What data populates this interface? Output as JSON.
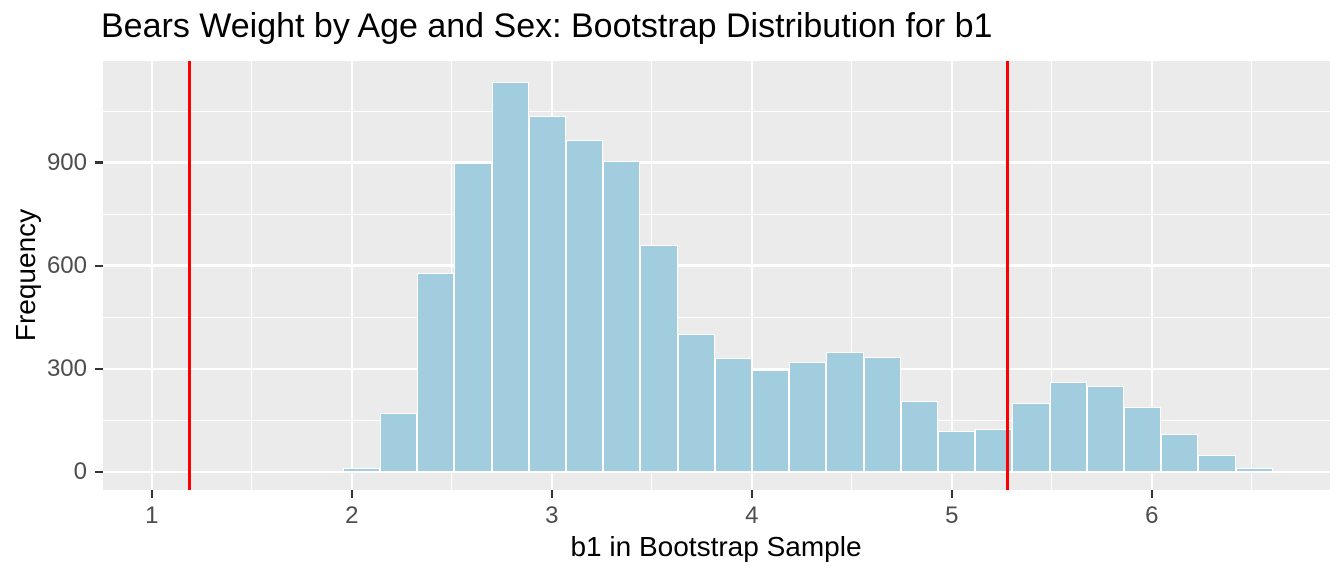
{
  "figure": {
    "background": "#ffffff"
  },
  "chart_data": {
    "type": "bar",
    "subtype": "histogram",
    "title": "Bears Weight by Age and Sex: Bootstrap Distribution for b1",
    "xlabel": "b1 in Bootstrap Sample",
    "ylabel": "Frequency",
    "bins": {
      "start": 1.955,
      "width": 0.186,
      "counts": [
        10,
        170,
        580,
        900,
        1135,
        1035,
        965,
        905,
        660,
        400,
        330,
        295,
        320,
        350,
        335,
        205,
        120,
        125,
        200,
        260,
        250,
        190,
        110,
        50,
        10
      ]
    },
    "reference_lines": {
      "values": [
        1.19,
        5.28
      ],
      "color": "#ff0000"
    },
    "x_ticks": [
      1,
      2,
      3,
      4,
      5,
      6
    ],
    "y_ticks": [
      0,
      300,
      600,
      900
    ],
    "x_minor_ticks": [
      1.5,
      2.5,
      3.5,
      4.5,
      5.5,
      6.5
    ],
    "y_minor_ticks": [
      150,
      450,
      750,
      1050
    ],
    "x_range": [
      0.756,
      6.891
    ],
    "y_range": [
      -53,
      1196
    ],
    "grid": true,
    "legend": "none",
    "colors": {
      "bar_fill": "#a2cddf",
      "bar_border": "#ffffff",
      "panel_bg": "#ebebeb",
      "grid": "#ffffff",
      "tick_mark": "#333333",
      "tick_label": "#4d4d4d",
      "text": "#000000"
    }
  }
}
